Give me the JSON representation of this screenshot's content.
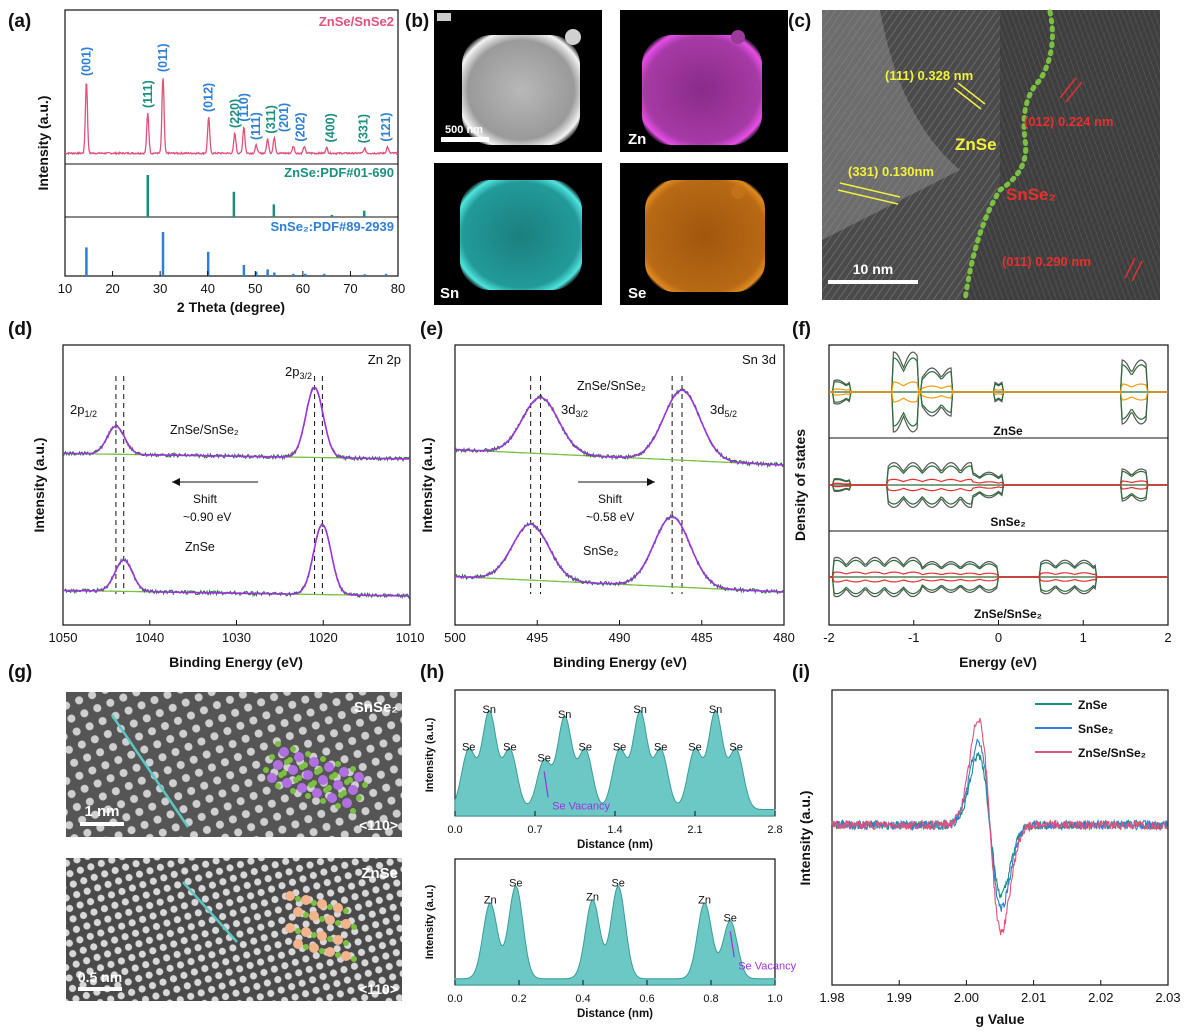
{
  "panel_labels": [
    "(a)",
    "(b)",
    "(c)",
    "(d)",
    "(e)",
    "(f)",
    "(g)",
    "(h)",
    "(i)"
  ],
  "colors": {
    "pink": "#e0527a",
    "teal": "#1a8f80",
    "blue": "#2e7fd6",
    "darkgreen": "#2d6b3a",
    "purple": "#9b34e0",
    "lime": "#7bc043",
    "orange": "#f39c12",
    "red": "#e63030",
    "yellow": "#f2f23c",
    "cyan": "#5cc6c2"
  },
  "chart_data": [
    {
      "id": "a",
      "type": "line",
      "title": "ZnSe/SnSe2",
      "xlabel": "2 Theta (degree)",
      "ylabel": "Intensity (a.u.)",
      "xlim": [
        10,
        80
      ],
      "xticks": [
        "10",
        "20",
        "30",
        "40",
        "50",
        "60",
        "70",
        "80"
      ],
      "peaks": [
        {
          "x": 14.5,
          "h": 0.9
        },
        {
          "x": 27.4,
          "h": 0.5
        },
        {
          "x": 30.6,
          "h": 0.95
        },
        {
          "x": 40.2,
          "h": 0.45
        },
        {
          "x": 45.7,
          "h": 0.25
        },
        {
          "x": 47.6,
          "h": 0.33
        },
        {
          "x": 50.2,
          "h": 0.1
        },
        {
          "x": 52.6,
          "h": 0.18
        },
        {
          "x": 54.0,
          "h": 0.2
        },
        {
          "x": 58.0,
          "h": 0.09
        },
        {
          "x": 60.3,
          "h": 0.08
        },
        {
          "x": 65.0,
          "h": 0.07
        },
        {
          "x": 73.0,
          "h": 0.06
        },
        {
          "x": 77.8,
          "h": 0.08
        }
      ],
      "annotations": [
        {
          "text": "(001)",
          "x": 14.5,
          "color": "blue"
        },
        {
          "text": "(111)",
          "x": 27.4,
          "color": "teal"
        },
        {
          "text": "(011)",
          "x": 30.6,
          "color": "blue"
        },
        {
          "text": "(012)",
          "x": 40.2,
          "color": "blue"
        },
        {
          "text": "(220)",
          "x": 45.7,
          "color": "teal"
        },
        {
          "text": "(110)",
          "x": 47.6,
          "color": "blue"
        },
        {
          "text": "(111)",
          "x": 50.2,
          "color": "blue"
        },
        {
          "text": "(311)",
          "x": 53.3,
          "color": "teal"
        },
        {
          "text": "(201)",
          "x": 56.0,
          "color": "blue"
        },
        {
          "text": "(202)",
          "x": 59.5,
          "color": "blue"
        },
        {
          "text": "(400)",
          "x": 65.8,
          "color": "teal"
        },
        {
          "text": "(331)",
          "x": 72.8,
          "color": "teal"
        },
        {
          "text": "(121)",
          "x": 77.5,
          "color": "blue"
        }
      ],
      "ref_znse": {
        "label": "ZnSe:PDF#01-690",
        "sticks": [
          [
            27.4,
            1.0
          ],
          [
            45.5,
            0.6
          ],
          [
            53.9,
            0.3
          ],
          [
            66.1,
            0.05
          ],
          [
            72.9,
            0.15
          ]
        ]
      },
      "ref_snse2": {
        "label": "SnSe₂:PDF#89-2939",
        "sticks": [
          [
            14.5,
            0.65
          ],
          [
            30.6,
            1.0
          ],
          [
            40.1,
            0.55
          ],
          [
            47.6,
            0.25
          ],
          [
            50.2,
            0.1
          ],
          [
            52.6,
            0.15
          ],
          [
            54.0,
            0.08
          ],
          [
            58.0,
            0.05
          ],
          [
            60.5,
            0.05
          ],
          [
            64.5,
            0.05
          ],
          [
            73.0,
            0.04
          ],
          [
            77.5,
            0.05
          ]
        ]
      }
    },
    {
      "id": "d",
      "type": "line",
      "title": "Zn 2p",
      "xlabel": "Binding Energy (eV)",
      "ylabel": "Intensity (a.u.)",
      "xlim": [
        1050,
        1010
      ],
      "xticks": [
        "1050",
        "1040",
        "1030",
        "1020",
        "1010"
      ],
      "series": [
        {
          "name": "ZnSe/SnSe₂",
          "peaks": [
            [
              1043.9,
              0.4
            ],
            [
              1021.0,
              1.0
            ]
          ]
        },
        {
          "name": "ZnSe",
          "peaks": [
            [
              1043.0,
              0.45
            ],
            [
              1020.1,
              1.0
            ]
          ]
        }
      ],
      "labels": {
        "p12": "2p",
        "p12_sub": "1/2",
        "p32": "2p",
        "p32_sub": "3/2",
        "shift": "Shift",
        "shift_val": "~0.90 eV",
        "top": "ZnSe/SnSe₂",
        "bottom": "ZnSe"
      }
    },
    {
      "id": "e",
      "type": "line",
      "title": "Sn 3d",
      "xlabel": "Binding Energy (eV)",
      "ylabel": "Intensity (a.u.)",
      "xlim": [
        500,
        480
      ],
      "xticks": [
        "500",
        "495",
        "490",
        "485",
        "480"
      ],
      "series": [
        {
          "name": "ZnSe/SnSe₂",
          "peaks": [
            [
              494.8,
              0.8
            ],
            [
              486.2,
              1.0
            ]
          ]
        },
        {
          "name": "SnSe₂",
          "peaks": [
            [
              495.4,
              0.8
            ],
            [
              486.8,
              1.0
            ]
          ]
        }
      ],
      "labels": {
        "d32": "3d",
        "d32_sub": "3/2",
        "d52": "3d",
        "d52_sub": "5/2",
        "shift": "Shift",
        "shift_val": "~0.58 eV",
        "top": "ZnSe/SnSe₂",
        "bottom": "SnSe₂"
      }
    },
    {
      "id": "f",
      "type": "area",
      "xlabel": "Energy (eV)",
      "ylabel": "Density of states",
      "xlim": [
        -2,
        2
      ],
      "xticks": [
        "-2",
        "-1",
        "0",
        "1",
        "2"
      ],
      "subpanels": [
        "ZnSe",
        "SnSe₂",
        "ZnSe/SnSe₂"
      ]
    },
    {
      "id": "h_top",
      "type": "area",
      "xlabel": "Distance (nm)",
      "ylabel": "Intensity (a.u.)",
      "xlim": [
        0,
        2.8
      ],
      "xticks": [
        "0.0",
        "0.7",
        "1.4",
        "2.1",
        "2.8"
      ],
      "atoms": [
        {
          "x": 0.12,
          "h": 0.55,
          "t": "Se"
        },
        {
          "x": 0.3,
          "h": 0.9,
          "t": "Sn"
        },
        {
          "x": 0.48,
          "h": 0.55,
          "t": "Se"
        },
        {
          "x": 0.78,
          "h": 0.45,
          "t": "Se"
        },
        {
          "x": 0.96,
          "h": 0.85,
          "t": "Sn"
        },
        {
          "x": 1.14,
          "h": 0.55,
          "t": "Se"
        },
        {
          "x": 1.44,
          "h": 0.55,
          "t": "Se"
        },
        {
          "x": 1.62,
          "h": 0.9,
          "t": "Sn"
        },
        {
          "x": 1.8,
          "h": 0.55,
          "t": "Se"
        },
        {
          "x": 2.1,
          "h": 0.55,
          "t": "Se"
        },
        {
          "x": 2.28,
          "h": 0.9,
          "t": "Sn"
        },
        {
          "x": 2.46,
          "h": 0.55,
          "t": "Se"
        }
      ],
      "vacancy_label": "Se Vacancy"
    },
    {
      "id": "h_bot",
      "type": "area",
      "xlabel": "Distance (nm)",
      "ylabel": "Intensity (a.u.)",
      "xlim": [
        0,
        1.0
      ],
      "xticks": [
        "0.0",
        "0.2",
        "0.4",
        "0.6",
        "0.8",
        "1.0"
      ],
      "atoms": [
        {
          "x": 0.11,
          "h": 0.72,
          "t": "Zn"
        },
        {
          "x": 0.19,
          "h": 0.88,
          "t": "Se"
        },
        {
          "x": 0.43,
          "h": 0.75,
          "t": "Zn"
        },
        {
          "x": 0.51,
          "h": 0.88,
          "t": "Se"
        },
        {
          "x": 0.78,
          "h": 0.72,
          "t": "Zn"
        },
        {
          "x": 0.86,
          "h": 0.55,
          "t": "Se"
        }
      ],
      "vacancy_label": "Se Vacancy"
    },
    {
      "id": "i",
      "type": "line",
      "xlabel": "g Value",
      "ylabel": "Intensity (a.u.)",
      "xlim": [
        1.98,
        2.03
      ],
      "xticks": [
        "1.98",
        "1.99",
        "2.00",
        "2.01",
        "2.02",
        "2.03"
      ],
      "legend": [
        "ZnSe",
        "SnSe₂",
        "ZnSe/SnSe₂"
      ],
      "legend_position": "top-right"
    }
  ],
  "images": {
    "b": {
      "labels": [
        "Zn",
        "Sn",
        "Se"
      ],
      "scale": "500 nm"
    },
    "c": {
      "znse": "ZnSe",
      "snse2": "SnSe₂",
      "scale": "10 nm",
      "f1": "(111) 0.328 nm",
      "f2": "(331) 0.130nm",
      "f3": "(012) 0.224 nm",
      "f4": "(011) 0.290 nm"
    },
    "g": {
      "top_label": "SnSe₂",
      "top_zone": "<110>",
      "top_scale": "1 nm",
      "bot_label": "ZnSe",
      "bot_zone": "<110>",
      "bot_scale": "0.5 nm"
    }
  }
}
